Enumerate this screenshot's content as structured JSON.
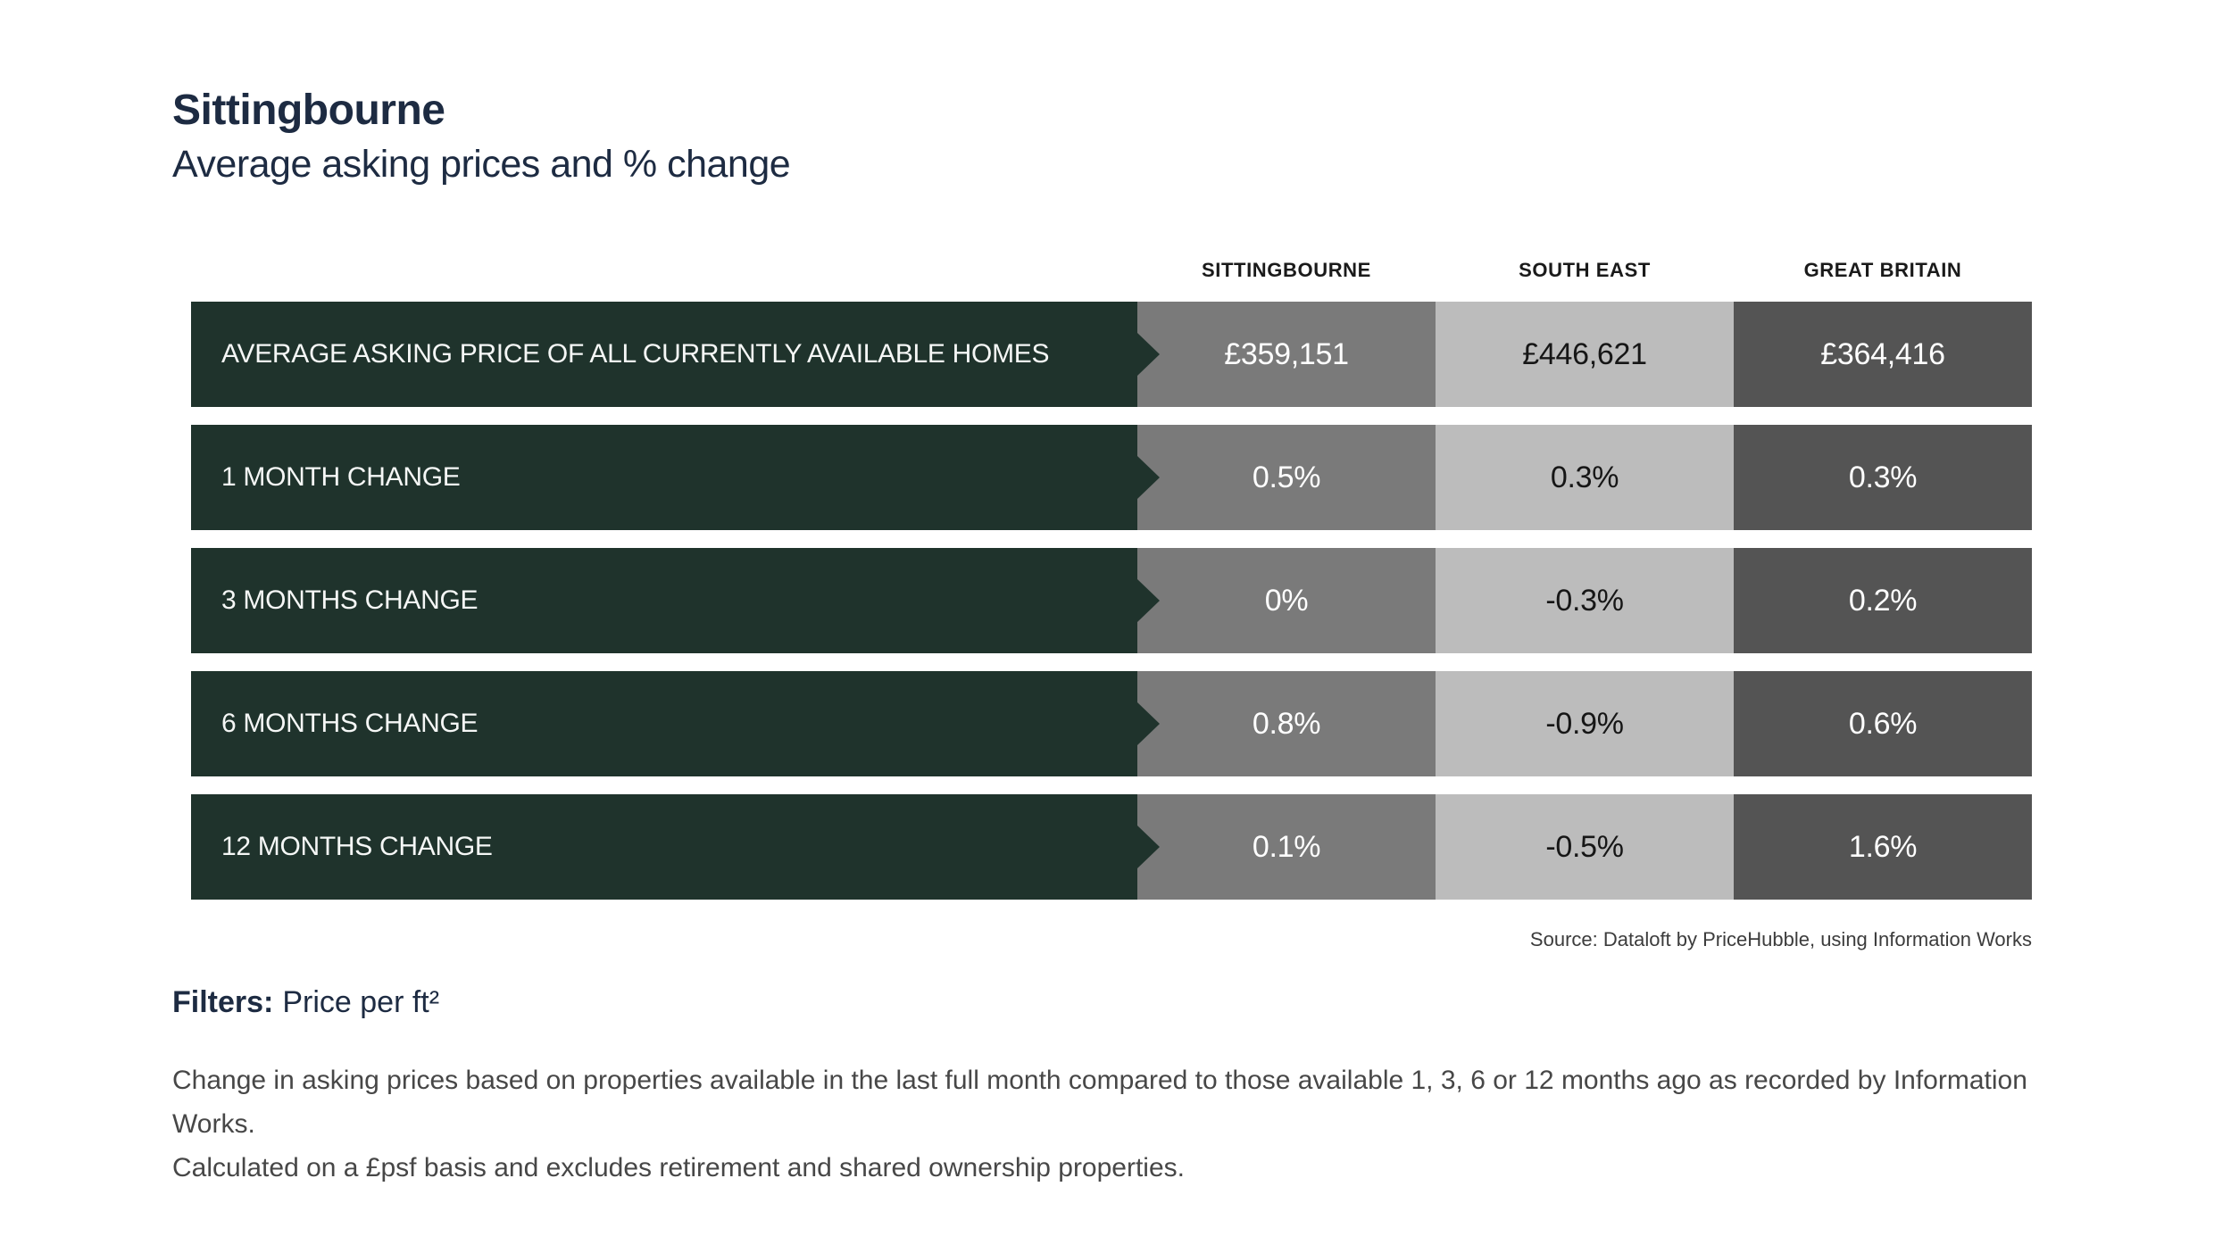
{
  "page": {
    "title": "Sittingbourne",
    "subtitle": "Average asking prices and % change"
  },
  "table": {
    "column_headers": [
      "SITTINGBOURNE",
      "SOUTH EAST",
      "GREAT BRITAIN"
    ],
    "rows": [
      {
        "label": "AVERAGE ASKING PRICE OF ALL CURRENTLY AVAILABLE HOMES",
        "values": [
          "£359,151",
          "£446,621",
          "£364,416"
        ]
      },
      {
        "label": "1 MONTH CHANGE",
        "values": [
          "0.5%",
          "0.3%",
          "0.3%"
        ]
      },
      {
        "label": "3 MONTHS CHANGE",
        "values": [
          "0%",
          "-0.3%",
          "0.2%"
        ]
      },
      {
        "label": "6 MONTHS CHANGE",
        "values": [
          "0.8%",
          "-0.9%",
          "0.6%"
        ]
      },
      {
        "label": "12 MONTHS CHANGE",
        "values": [
          "0.1%",
          "-0.5%",
          "1.6%"
        ]
      }
    ],
    "source": "Source: Dataloft by PriceHubble, using Information Works"
  },
  "filters": {
    "label": "Filters:",
    "value": "Price per ft²"
  },
  "footnote": {
    "line1": "Change in asking prices based on properties available in the last full month compared to those available 1, 3, 6 or 12 months ago as recorded by Information Works.",
    "line2": "Calculated on a £psf basis and excludes retirement and shared ownership properties."
  },
  "colors": {
    "title_navy": "#1d2b42",
    "row_label_green": "#1f332c",
    "column_sittingbourne_gray": "#7a7a7a",
    "column_south_east_gray": "#bcbcbc",
    "column_great_britain_gray": "#545454",
    "background": "#ffffff"
  },
  "chart_data": {
    "type": "table",
    "title": "Sittingbourne",
    "subtitle": "Average asking prices and % change",
    "columns": [
      "SITTINGBOURNE",
      "SOUTH EAST",
      "GREAT BRITAIN"
    ],
    "row_labels": [
      "AVERAGE ASKING PRICE OF ALL CURRENTLY AVAILABLE HOMES",
      "1 MONTH CHANGE",
      "3 MONTHS CHANGE",
      "6 MONTHS CHANGE",
      "12 MONTHS CHANGE"
    ],
    "cell_values": [
      [
        "£359,151",
        "£446,621",
        "£364,416"
      ],
      [
        "0.5%",
        "0.3%",
        "0.3%"
      ],
      [
        "0%",
        "-0.3%",
        "0.2%"
      ],
      [
        "0.8%",
        "-0.9%",
        "0.6%"
      ],
      [
        "0.1%",
        "-0.5%",
        "1.6%"
      ]
    ],
    "numeric_values": {
      "average_asking_price_gbp": [
        359151,
        446621,
        364416
      ],
      "pct_change_1_month": [
        0.5,
        0.3,
        0.3
      ],
      "pct_change_3_months": [
        0.0,
        -0.3,
        0.2
      ],
      "pct_change_6_months": [
        0.8,
        -0.9,
        0.6
      ],
      "pct_change_12_months": [
        0.1,
        -0.5,
        1.6
      ]
    },
    "source": "Source: Dataloft by PriceHubble, using Information Works"
  }
}
